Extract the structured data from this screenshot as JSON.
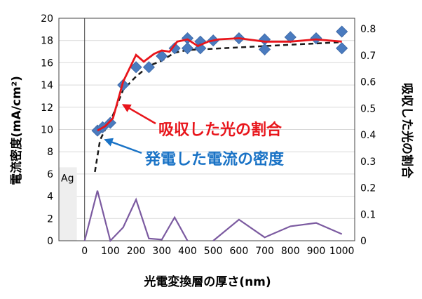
{
  "chart_data": {
    "type": "scatter",
    "xlabel": "光電変換層の厚さ(nm)",
    "ylabel_left": "電流密度(mA/cm²)",
    "ylabel_right": "吸収した光の割合",
    "x_ticks": [
      "0",
      "100",
      "200",
      "300",
      "400",
      "500",
      "600",
      "700",
      "800",
      "900",
      "1000"
    ],
    "y_left_ticks": [
      "0",
      "2",
      "4",
      "6",
      "8",
      "10",
      "12",
      "14",
      "16",
      "18",
      "20"
    ],
    "y_right_ticks": [
      "0",
      "0.1",
      "0.2",
      "0.3",
      "0.4",
      "0.5",
      "0.6",
      "0.7",
      "0.8"
    ],
    "xlim": [
      -100,
      1050
    ],
    "ylim_left": [
      0,
      20
    ],
    "ylim_right": [
      0,
      0.84
    ],
    "grid": "horizontal",
    "shaded_region": {
      "label": "Ag",
      "x": [
        -100,
        -30
      ],
      "ylim_left": [
        0,
        6.6
      ]
    },
    "annotations": [
      {
        "text": "吸収した光の割合",
        "color": "#e8151b",
        "points_to_x": 140,
        "points_to_y_left": 12.4
      },
      {
        "text": "発電した電流の密度",
        "color": "#1a73c6",
        "points_to_x": 65,
        "points_to_y_left": 9.2
      }
    ],
    "series": [
      {
        "kind": "markers",
        "axis": "left",
        "color": "#4a7bbf",
        "x": [
          50,
          70,
          100,
          150,
          200,
          250,
          300,
          350,
          400,
          400,
          450,
          450,
          500,
          600,
          700,
          700,
          800,
          900,
          1000,
          1000
        ],
        "y": [
          9.9,
          10.2,
          10.6,
          14.0,
          15.6,
          15.6,
          16.6,
          17.3,
          18.2,
          17.3,
          17.9,
          17.3,
          18.0,
          18.2,
          18.1,
          17.2,
          18.3,
          18.2,
          18.8,
          17.3
        ]
      },
      {
        "kind": "solid-line",
        "axis": "left",
        "color": "#e8151b",
        "x": [
          50,
          80,
          110,
          150,
          200,
          230,
          270,
          300,
          330,
          360,
          400,
          440,
          480,
          520,
          600,
          700,
          800,
          900,
          1000
        ],
        "y": [
          9.9,
          10.3,
          11.0,
          14.3,
          16.7,
          16.1,
          16.8,
          17.1,
          17.0,
          17.9,
          18.1,
          17.5,
          17.9,
          18.1,
          18.2,
          17.9,
          17.9,
          18.1,
          17.9
        ]
      },
      {
        "kind": "dashed-line",
        "axis": "right",
        "color": "#1a1a1a",
        "x": [
          40,
          60,
          80,
          100,
          150,
          200,
          250,
          300,
          350,
          400,
          500,
          600,
          700,
          800,
          900,
          1000
        ],
        "y": [
          0.26,
          0.38,
          0.42,
          0.45,
          0.57,
          0.62,
          0.66,
          0.68,
          0.71,
          0.72,
          0.725,
          0.73,
          0.735,
          0.74,
          0.745,
          0.75
        ]
      },
      {
        "kind": "solid-line",
        "axis": "left",
        "color": "#7b5aa0",
        "x": [
          0,
          50,
          100,
          150,
          200,
          250,
          300,
          350,
          400
        ],
        "y": [
          0,
          4.5,
          0,
          1.2,
          3.7,
          0.2,
          0.1,
          2.1,
          0
        ],
        "segment2": {
          "x": [
            500,
            600,
            700,
            800,
            900,
            1000
          ],
          "y": [
            0,
            1.9,
            0.3,
            1.3,
            1.6,
            0.6
          ]
        }
      }
    ]
  }
}
